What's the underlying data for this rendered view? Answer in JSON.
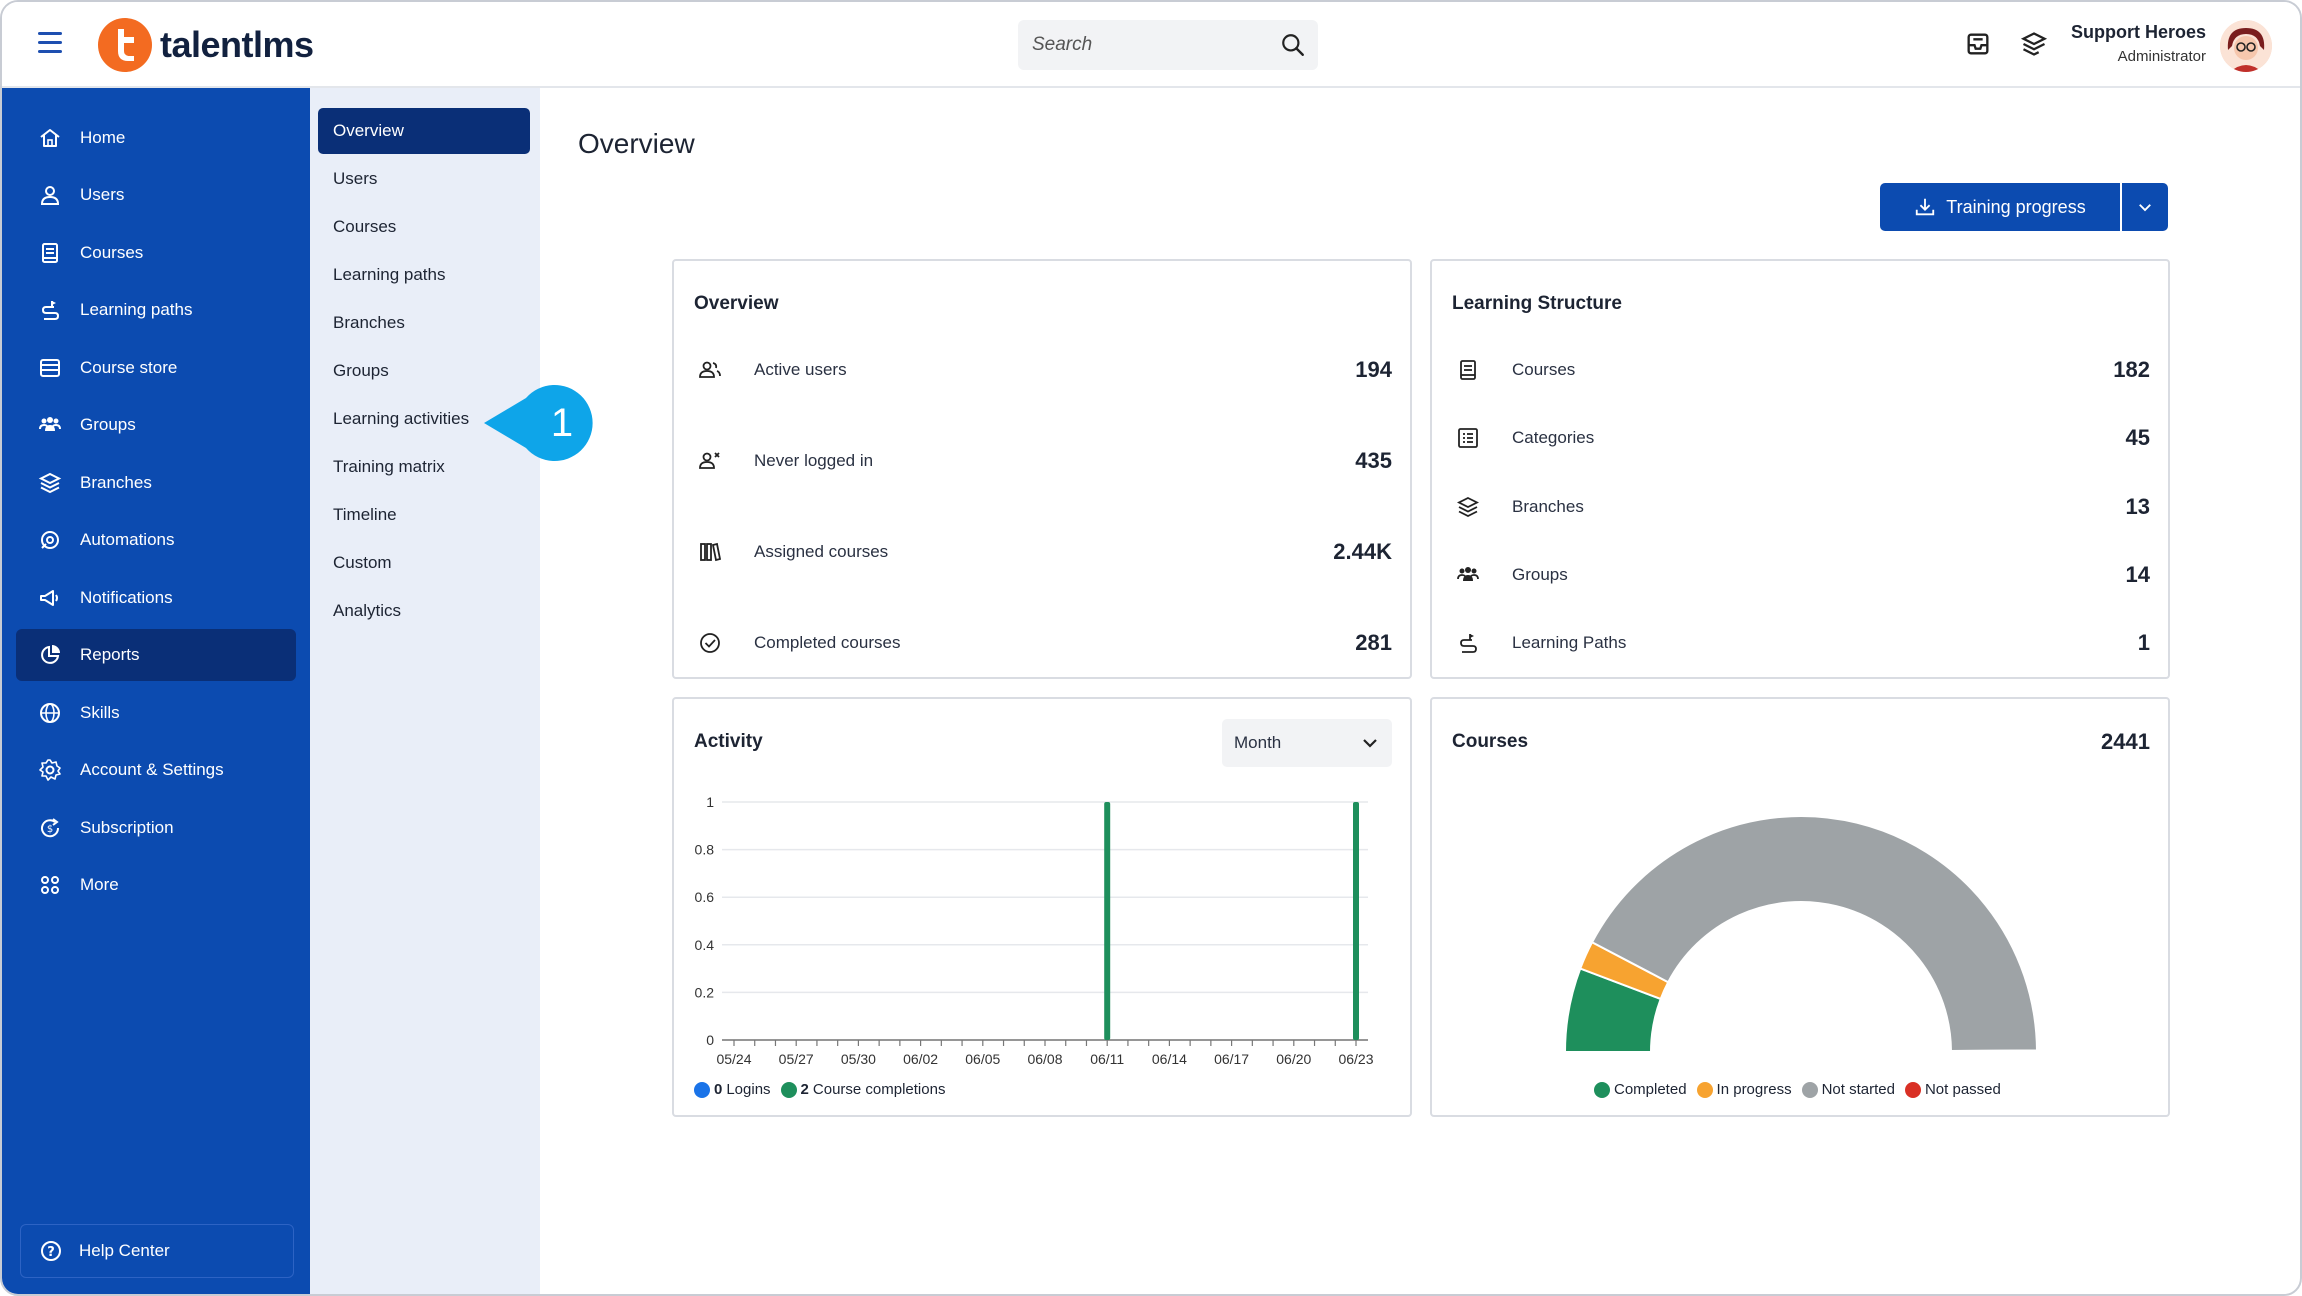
{
  "header": {
    "logo_text": "talentlms",
    "search_placeholder": "Search",
    "user_name": "Support Heroes",
    "user_role": "Administrator"
  },
  "sidebar": {
    "items": [
      {
        "label": "Home",
        "icon": "home-icon"
      },
      {
        "label": "Users",
        "icon": "user-icon"
      },
      {
        "label": "Courses",
        "icon": "book-icon"
      },
      {
        "label": "Learning paths",
        "icon": "path-icon"
      },
      {
        "label": "Course store",
        "icon": "store-icon"
      },
      {
        "label": "Groups",
        "icon": "groups-icon"
      },
      {
        "label": "Branches",
        "icon": "layers-icon"
      },
      {
        "label": "Automations",
        "icon": "automation-icon"
      },
      {
        "label": "Notifications",
        "icon": "megaphone-icon"
      },
      {
        "label": "Reports",
        "icon": "pie-chart-icon"
      },
      {
        "label": "Skills",
        "icon": "globe-icon"
      },
      {
        "label": "Account & Settings",
        "icon": "gear-icon"
      },
      {
        "label": "Subscription",
        "icon": "subscription-icon"
      },
      {
        "label": "More",
        "icon": "grid-icon"
      }
    ],
    "active": "Reports",
    "help_center": "Help Center"
  },
  "submenu": {
    "items": [
      "Overview",
      "Users",
      "Courses",
      "Learning paths",
      "Branches",
      "Groups",
      "Learning activities",
      "Training matrix",
      "Timeline",
      "Custom",
      "Analytics"
    ],
    "active": "Overview"
  },
  "callout": {
    "number": "1"
  },
  "main": {
    "title": "Overview",
    "training_progress_button": "Training progress"
  },
  "overview_card": {
    "title": "Overview",
    "rows": [
      {
        "label": "Active users",
        "value": "194",
        "icon": "active-users-icon"
      },
      {
        "label": "Never logged in",
        "value": "435",
        "icon": "never-logged-icon"
      },
      {
        "label": "Assigned courses",
        "value": "2.44K",
        "icon": "assigned-courses-icon"
      },
      {
        "label": "Completed courses",
        "value": "281",
        "icon": "check-circle-icon"
      }
    ]
  },
  "structure_card": {
    "title": "Learning Structure",
    "rows": [
      {
        "label": "Courses",
        "value": "182",
        "icon": "book-icon"
      },
      {
        "label": "Categories",
        "value": "45",
        "icon": "list-icon"
      },
      {
        "label": "Branches",
        "value": "13",
        "icon": "layers-icon"
      },
      {
        "label": "Groups",
        "value": "14",
        "icon": "groups-icon"
      },
      {
        "label": "Learning Paths",
        "value": "1",
        "icon": "path-icon"
      }
    ]
  },
  "activity_card": {
    "title": "Activity",
    "period": "Month",
    "legend": [
      {
        "count": "0",
        "label": "Logins",
        "color": "#1a73e8"
      },
      {
        "count": "2",
        "label": "Course completions",
        "color": "#1e8f5c"
      }
    ]
  },
  "courses_card": {
    "title": "Courses",
    "total": "2441",
    "legend": [
      {
        "label": "Completed",
        "color": "#1e8f5c"
      },
      {
        "label": "In progress",
        "color": "#f7a330"
      },
      {
        "label": "Not started",
        "color": "#9ea3a6"
      },
      {
        "label": "Not passed",
        "color": "#d93025"
      }
    ]
  },
  "chart_data": [
    {
      "type": "bar",
      "categories": [
        "05/24",
        "05/27",
        "05/30",
        "06/02",
        "06/05",
        "06/08",
        "06/11",
        "06/14",
        "06/17",
        "06/20",
        "06/23"
      ],
      "y_ticks": [
        "0",
        "0.2",
        "0.4",
        "0.6",
        "0.8",
        "1"
      ],
      "ylim": [
        0,
        1
      ],
      "series": [
        {
          "name": "Course completions",
          "color": "#1e8f5c",
          "points": [
            {
              "x": "06/11",
              "y": 1
            },
            {
              "x": "06/23",
              "y": 1
            }
          ]
        },
        {
          "name": "Logins",
          "color": "#1a73e8",
          "points": []
        }
      ]
    },
    {
      "type": "pie",
      "style": "half-donut",
      "slices": [
        {
          "name": "Completed",
          "value": 281,
          "color": "#1e8f5c"
        },
        {
          "name": "In progress",
          "value": 95,
          "color": "#f7a330"
        },
        {
          "name": "Not started",
          "value": 2060,
          "color": "#9ea3a6"
        },
        {
          "name": "Not passed",
          "value": 5,
          "color": "#d93025"
        }
      ]
    }
  ]
}
